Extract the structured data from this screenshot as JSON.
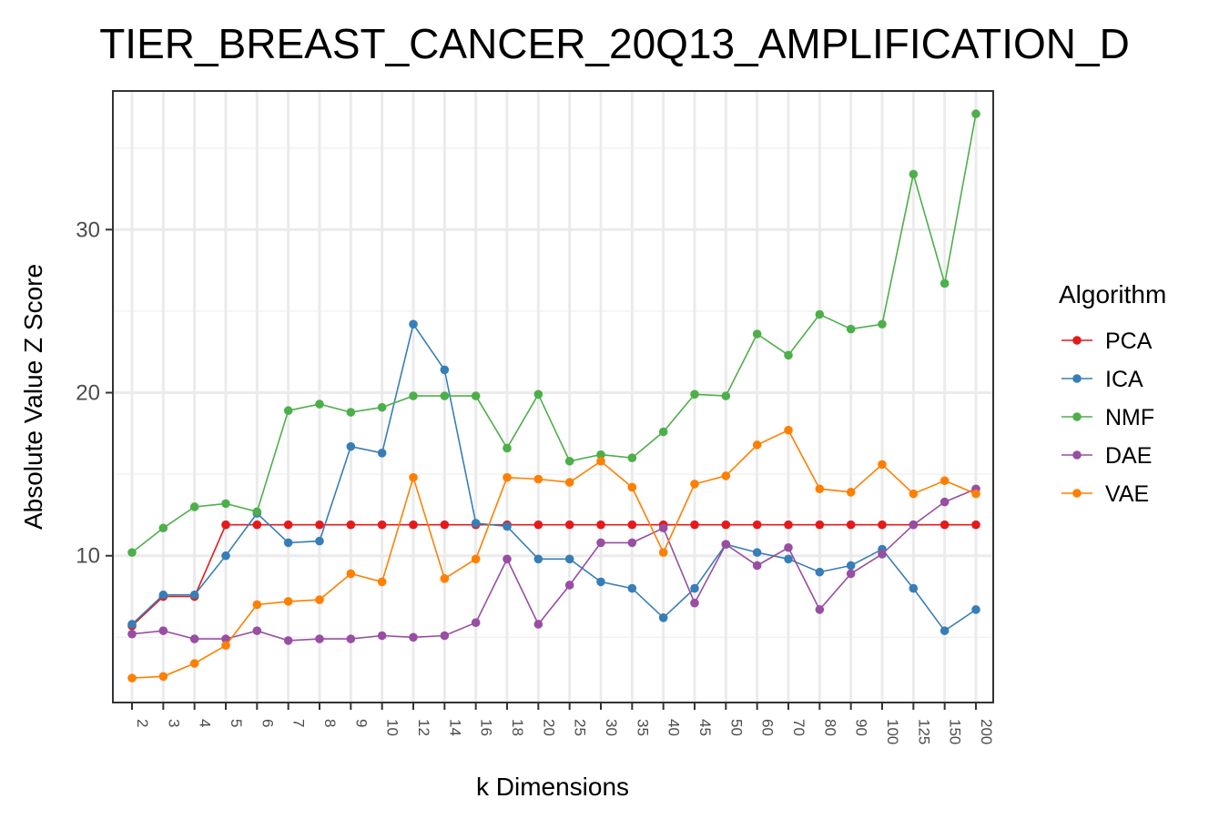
{
  "chart_data": {
    "type": "line",
    "title": "TIER_BREAST_CANCER_20Q13_AMPLIFICATION_D",
    "xlabel": "k Dimensions",
    "ylabel": "Absolute Value Z Score",
    "categories": [
      "2",
      "3",
      "4",
      "5",
      "6",
      "7",
      "8",
      "9",
      "10",
      "12",
      "14",
      "16",
      "18",
      "20",
      "25",
      "30",
      "35",
      "40",
      "45",
      "50",
      "60",
      "70",
      "80",
      "90",
      "100",
      "125",
      "150",
      "200"
    ],
    "yticks": [
      10,
      20,
      30
    ],
    "ylim": [
      1,
      38.5
    ],
    "grid": true,
    "legend": {
      "title": "Algorithm",
      "placement": "right"
    },
    "series": [
      {
        "name": "PCA",
        "color": "#e41a1c",
        "values": [
          5.7,
          7.5,
          7.5,
          11.9,
          11.9,
          11.9,
          11.9,
          11.9,
          11.9,
          11.9,
          11.9,
          11.9,
          11.9,
          11.9,
          11.9,
          11.9,
          11.9,
          11.9,
          11.9,
          11.9,
          11.9,
          11.9,
          11.9,
          11.9,
          11.9,
          11.9,
          11.9,
          11.9
        ]
      },
      {
        "name": "ICA",
        "color": "#377eb8",
        "values": [
          5.8,
          7.6,
          7.6,
          10.0,
          12.6,
          10.8,
          10.9,
          16.7,
          16.3,
          24.2,
          21.4,
          12.0,
          11.8,
          9.8,
          9.8,
          8.4,
          8.0,
          6.2,
          8.0,
          10.7,
          10.2,
          9.8,
          9.0,
          9.4,
          10.4,
          8.0,
          5.4,
          6.7
        ]
      },
      {
        "name": "NMF",
        "color": "#4daf4a",
        "values": [
          10.2,
          11.7,
          13.0,
          13.2,
          12.7,
          18.9,
          19.3,
          18.8,
          19.1,
          19.8,
          19.8,
          19.8,
          16.6,
          19.9,
          15.8,
          16.2,
          16.0,
          17.6,
          19.9,
          19.8,
          23.6,
          22.3,
          24.8,
          23.9,
          24.2,
          33.4,
          26.7,
          37.1
        ]
      },
      {
        "name": "DAE",
        "color": "#984ea3",
        "values": [
          5.2,
          5.4,
          4.9,
          4.9,
          5.4,
          4.8,
          4.9,
          4.9,
          5.1,
          5.0,
          5.1,
          5.9,
          9.8,
          5.8,
          8.2,
          10.8,
          10.8,
          11.7,
          7.1,
          10.7,
          9.4,
          10.5,
          6.7,
          8.9,
          10.1,
          11.9,
          13.3,
          14.1
        ]
      },
      {
        "name": "VAE",
        "color": "#ff7f00",
        "values": [
          2.5,
          2.6,
          3.4,
          4.5,
          7.0,
          7.2,
          7.3,
          8.9,
          8.4,
          14.8,
          8.6,
          9.8,
          14.8,
          14.7,
          14.5,
          15.8,
          14.2,
          10.2,
          14.4,
          14.9,
          16.8,
          17.7,
          14.1,
          13.9,
          15.6,
          13.8,
          14.6,
          13.8
        ]
      }
    ]
  }
}
